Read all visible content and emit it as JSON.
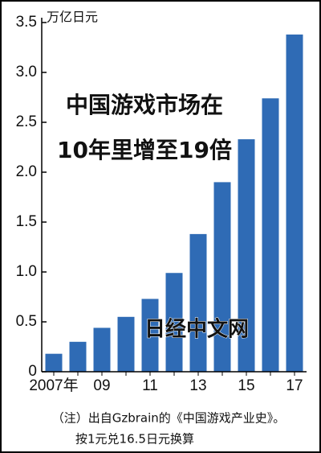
{
  "chart_data": {
    "type": "bar",
    "title_lines": [
      "中国游戏市场在",
      "10年里增至19倍"
    ],
    "y_unit": "万亿日元",
    "watermark": "日经中文网",
    "notes": [
      "（注）出自Gzbrain的《中国游戏产业史》。",
      "按1元兑16.5日元换算"
    ],
    "categories": [
      "2007年",
      null,
      "09",
      null,
      "11",
      null,
      "13",
      null,
      "15",
      null,
      "17"
    ],
    "values": [
      0.18,
      0.3,
      0.44,
      0.55,
      0.73,
      0.99,
      1.38,
      1.9,
      2.33,
      2.74,
      3.38
    ],
    "color": "#2f6bb5",
    "ylim": [
      0,
      3.5
    ],
    "yticks": [
      0,
      0.5,
      {
        "value": 1,
        "label": "1.0"
      },
      1.5,
      {
        "value": 2,
        "label": "2.0"
      },
      2.5,
      {
        "value": 3,
        "label": "3.0"
      },
      3.5
    ],
    "grid": false
  }
}
